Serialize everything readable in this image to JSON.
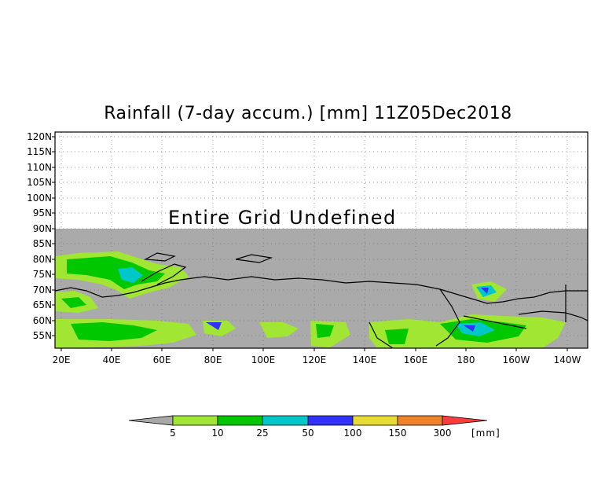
{
  "map": {
    "title": "Rainfall (7-day accum.) [mm] 11Z05Dec2018",
    "overlay_text": "Entire Grid Undefined",
    "lat_labels": [
      "120N",
      "115N",
      "110N",
      "105N",
      "100N",
      "95N",
      "90N",
      "85N",
      "80N",
      "75N",
      "70N",
      "65N",
      "60N",
      "55N"
    ],
    "lon_labels": [
      "20E",
      "40E",
      "60E",
      "80E",
      "100E",
      "120E",
      "140E",
      "160E",
      "180",
      "160W",
      "140W"
    ],
    "undefined_fill_color": "#aaaaaa"
  },
  "legend": {
    "thresholds": [
      "5",
      "10",
      "25",
      "50",
      "100",
      "150",
      "300"
    ],
    "unit": "[mm]",
    "colors": [
      "#a8a8a8",
      "#a0e632",
      "#00c800",
      "#00c8c8",
      "#3232ff",
      "#e6dc32",
      "#f08228",
      "#fa3c3c"
    ]
  }
}
